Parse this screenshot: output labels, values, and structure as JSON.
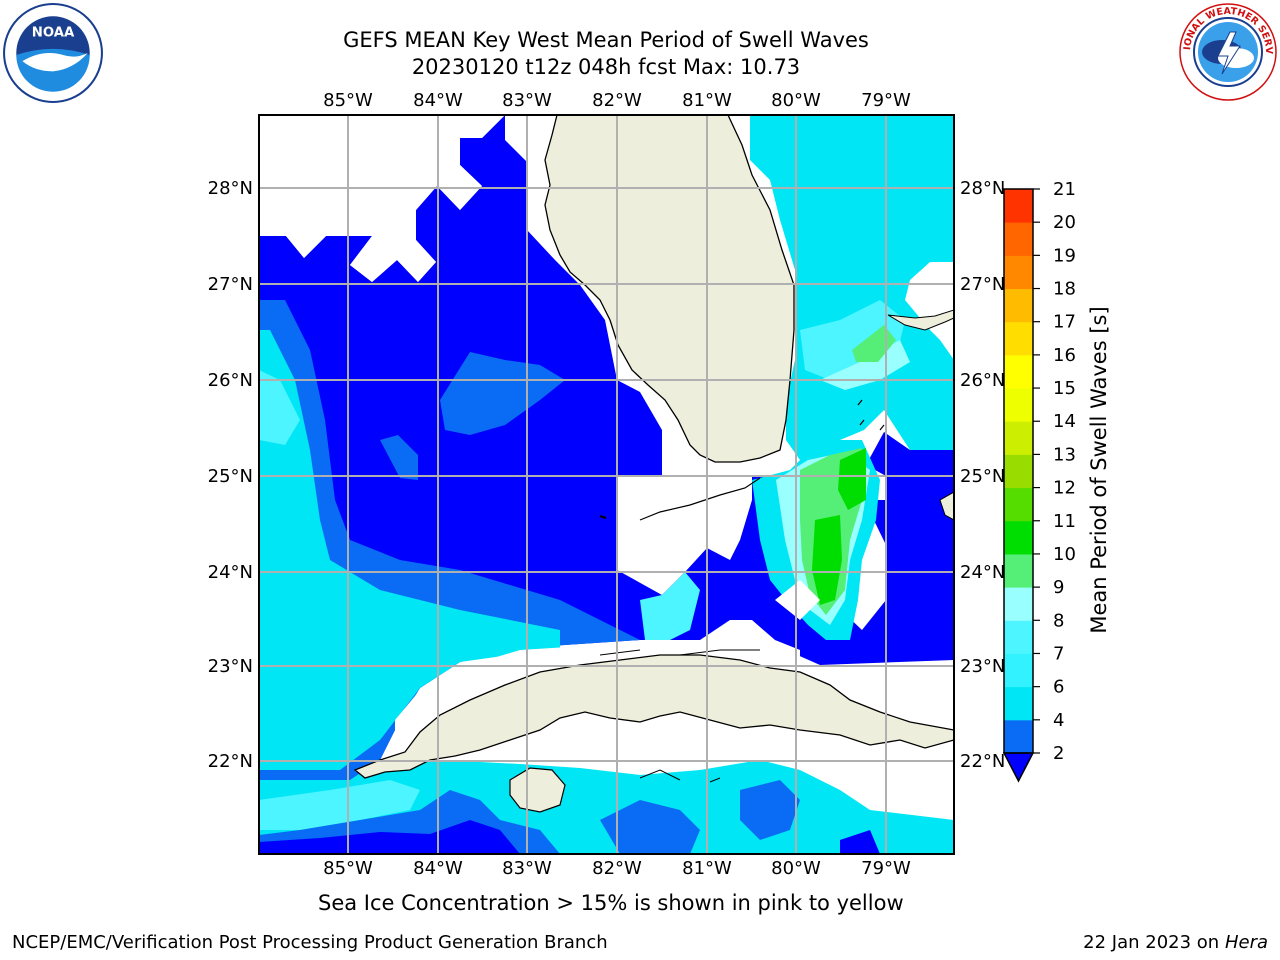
{
  "header": {
    "title_line1": "GEFS MEAN Key West Mean Period of Swell Waves",
    "title_line2": "20230120 t12z 048h fcst   Max: 10.73",
    "left_logo": "noaa-logo",
    "right_logo": "nws-logo"
  },
  "map": {
    "lon_labels": [
      "85°W",
      "84°W",
      "83°W",
      "82°W",
      "81°W",
      "80°W",
      "79°W"
    ],
    "lat_labels": [
      "28°N",
      "27°N",
      "26°N",
      "25°N",
      "24°N",
      "23°N",
      "22°N"
    ],
    "land_color": "#eeeedd",
    "gridline_color": "#b0b0b0"
  },
  "colorbar": {
    "label": "Mean Period of Swell Waves [s]",
    "ticks": [
      "2",
      "4",
      "6",
      "7",
      "8",
      "9",
      "10",
      "11",
      "12",
      "13",
      "14",
      "15",
      "16",
      "17",
      "18",
      "19",
      "20",
      "21"
    ],
    "colors": [
      "#0a6cf5",
      "#00e6f5",
      "#33f2ff",
      "#4cf5ff",
      "#99ffff",
      "#55ee77",
      "#00dd00",
      "#55dd00",
      "#99dd00",
      "#ccee00",
      "#eeff00",
      "#ffff00",
      "#ffdd00",
      "#ffbb00",
      "#ff8800",
      "#ff6600",
      "#ff3300",
      "#ff0000"
    ],
    "under_color": "#0000ff"
  },
  "footer": {
    "ice_note": "Sea Ice Concentration > 15% is shown in pink to yellow",
    "left": "NCEP/EMC/Verification Post Processing Product Generation Branch",
    "right_date": "22 Jan 2023 on ",
    "right_host": "Hera"
  }
}
